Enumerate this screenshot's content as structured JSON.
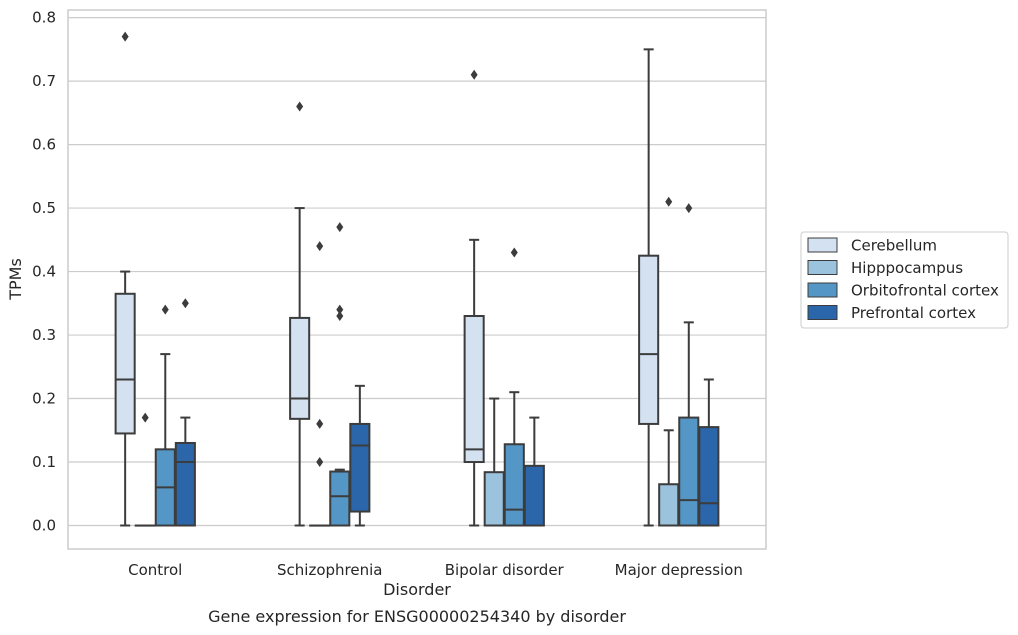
{
  "chart_data": {
    "type": "box",
    "xlabel": "Disorder",
    "ylabel": "TPMs",
    "caption": "Gene expression for ENSG00000254340 by disorder",
    "ylim": [
      -0.037,
      0.812
    ],
    "yticks": [
      "0.0",
      "0.1",
      "0.2",
      "0.3",
      "0.4",
      "0.5",
      "0.6",
      "0.7",
      "0.8"
    ],
    "grid": true,
    "legend_position": "right",
    "categories": [
      "Control",
      "Schizophrenia",
      "Bipolar disorder",
      "Major depression"
    ],
    "series": [
      {
        "name": "Cerebellum",
        "color": "#d3e1f0",
        "boxes": [
          {
            "whislo": 0.0,
            "q1": 0.145,
            "med": 0.23,
            "q3": 0.365,
            "whishi": 0.4,
            "fliers": [
              0.77
            ]
          },
          {
            "whislo": 0.0,
            "q1": 0.168,
            "med": 0.2,
            "q3": 0.327,
            "whishi": 0.5,
            "fliers": [
              0.66
            ]
          },
          {
            "whislo": 0.0,
            "q1": 0.1,
            "med": 0.12,
            "q3": 0.33,
            "whishi": 0.45,
            "fliers": [
              0.71
            ]
          },
          {
            "whislo": 0.0,
            "q1": 0.16,
            "med": 0.27,
            "q3": 0.425,
            "whishi": 0.75,
            "fliers": []
          }
        ]
      },
      {
        "name": "Hipppocampus",
        "color": "#9cc3dd",
        "boxes": [
          {
            "whislo": 0.0,
            "q1": 0.0,
            "med": 0.0,
            "q3": 0.0,
            "whishi": 0.0,
            "fliers": [
              0.17
            ]
          },
          {
            "whislo": 0.0,
            "q1": 0.0,
            "med": 0.0,
            "q3": 0.0,
            "whishi": 0.0,
            "fliers": [
              0.44,
              0.16,
              0.1
            ]
          },
          {
            "whislo": 0.0,
            "q1": 0.0,
            "med": 0.0,
            "q3": 0.084,
            "whishi": 0.2,
            "fliers": []
          },
          {
            "whislo": 0.0,
            "q1": 0.0,
            "med": 0.0,
            "q3": 0.065,
            "whishi": 0.15,
            "fliers": [
              0.51
            ]
          }
        ]
      },
      {
        "name": "Orbitofrontal cortex",
        "color": "#5497c6",
        "boxes": [
          {
            "whislo": 0.0,
            "q1": 0.0,
            "med": 0.06,
            "q3": 0.12,
            "whishi": 0.27,
            "fliers": [
              0.34
            ]
          },
          {
            "whislo": 0.0,
            "q1": 0.0,
            "med": 0.046,
            "q3": 0.085,
            "whishi": 0.088,
            "fliers": [
              0.47,
              0.34,
              0.33
            ]
          },
          {
            "whislo": 0.0,
            "q1": 0.0,
            "med": 0.025,
            "q3": 0.128,
            "whishi": 0.21,
            "fliers": [
              0.43
            ]
          },
          {
            "whislo": 0.0,
            "q1": 0.0,
            "med": 0.04,
            "q3": 0.17,
            "whishi": 0.32,
            "fliers": [
              0.5
            ]
          }
        ]
      },
      {
        "name": "Prefrontal cortex",
        "color": "#2a66a9",
        "boxes": [
          {
            "whislo": 0.0,
            "q1": 0.0,
            "med": 0.1,
            "q3": 0.13,
            "whishi": 0.17,
            "fliers": [
              0.35
            ]
          },
          {
            "whislo": 0.0,
            "q1": 0.022,
            "med": 0.126,
            "q3": 0.16,
            "whishi": 0.22,
            "fliers": []
          },
          {
            "whislo": 0.0,
            "q1": 0.0,
            "med": 0.0,
            "q3": 0.094,
            "whishi": 0.17,
            "fliers": []
          },
          {
            "whislo": 0.0,
            "q1": 0.0,
            "med": 0.035,
            "q3": 0.155,
            "whishi": 0.23,
            "fliers": []
          }
        ]
      }
    ]
  }
}
